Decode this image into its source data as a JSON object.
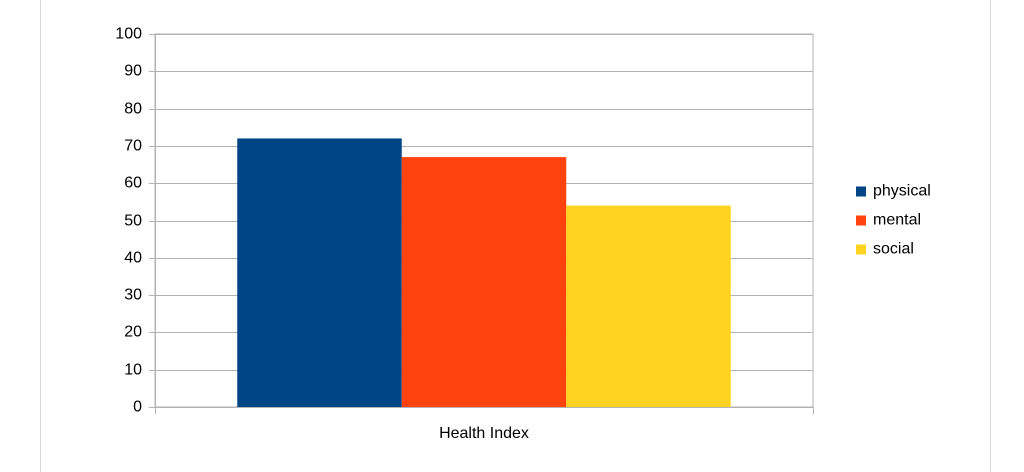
{
  "chart_data": {
    "type": "bar",
    "categories": [
      "Health Index"
    ],
    "series": [
      {
        "name": "physical",
        "color": "#004586",
        "values": [
          72
        ]
      },
      {
        "name": "mental",
        "color": "#ff420e",
        "values": [
          67
        ]
      },
      {
        "name": "social",
        "color": "#ffd320",
        "values": [
          54
        ]
      }
    ],
    "ylim": [
      0,
      100
    ],
    "yticks": [
      0,
      10,
      20,
      30,
      40,
      50,
      60,
      70,
      80,
      90,
      100
    ],
    "grid": true,
    "legend": "right"
  }
}
